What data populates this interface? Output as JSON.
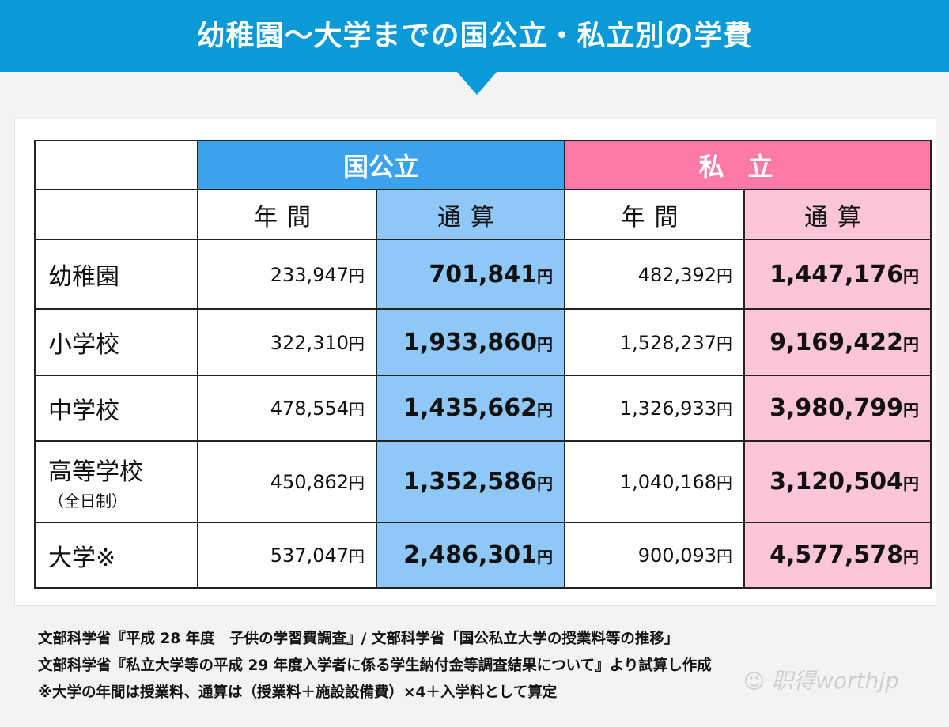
{
  "title": "幼稚園～大学までの国公立・私立別の学費",
  "colors": {
    "banner": "#0b9ad8",
    "public_header": "#3aa2ee",
    "public_total": "#8fc7f6",
    "private_header": "#fd79a6",
    "private_total": "#fdc5d8"
  },
  "table": {
    "groups": [
      "国公立",
      "私立"
    ],
    "subheaders": [
      "年間",
      "通算",
      "年間",
      "通算"
    ],
    "currency": "円",
    "rows": [
      {
        "label": "幼稚園",
        "note": "",
        "pub_year": "233,947",
        "pub_total": "701,841",
        "pri_year": "482,392",
        "pri_total": "1,447,176"
      },
      {
        "label": "小学校",
        "note": "",
        "pub_year": "322,310",
        "pub_total": "1,933,860",
        "pri_year": "1,528,237",
        "pri_total": "9,169,422"
      },
      {
        "label": "中学校",
        "note": "",
        "pub_year": "478,554",
        "pub_total": "1,435,662",
        "pri_year": "1,326,933",
        "pri_total": "3,980,799"
      },
      {
        "label": "高等学校",
        "note": "（全日制）",
        "pub_year": "450,862",
        "pub_total": "1,352,586",
        "pri_year": "1,040,168",
        "pri_total": "3,120,504"
      },
      {
        "label": "大学※",
        "note": "",
        "pub_year": "537,047",
        "pub_total": "2,486,301",
        "pri_year": "900,093",
        "pri_total": "4,577,578"
      }
    ]
  },
  "notes": [
    "文部科学省『平成 28 年度　子供の学習費調査』/ 文部科学省「国公私立大学の授業料等の推移」",
    "文部科学省『私立大学等の平成 29 年度入学者に係る学生納付金等調査結果について』より試算し作成",
    "※大学の年間は授業料、通算は（授業料＋施設設備費）×4＋入学料として算定"
  ],
  "watermark": "职得worthjp"
}
